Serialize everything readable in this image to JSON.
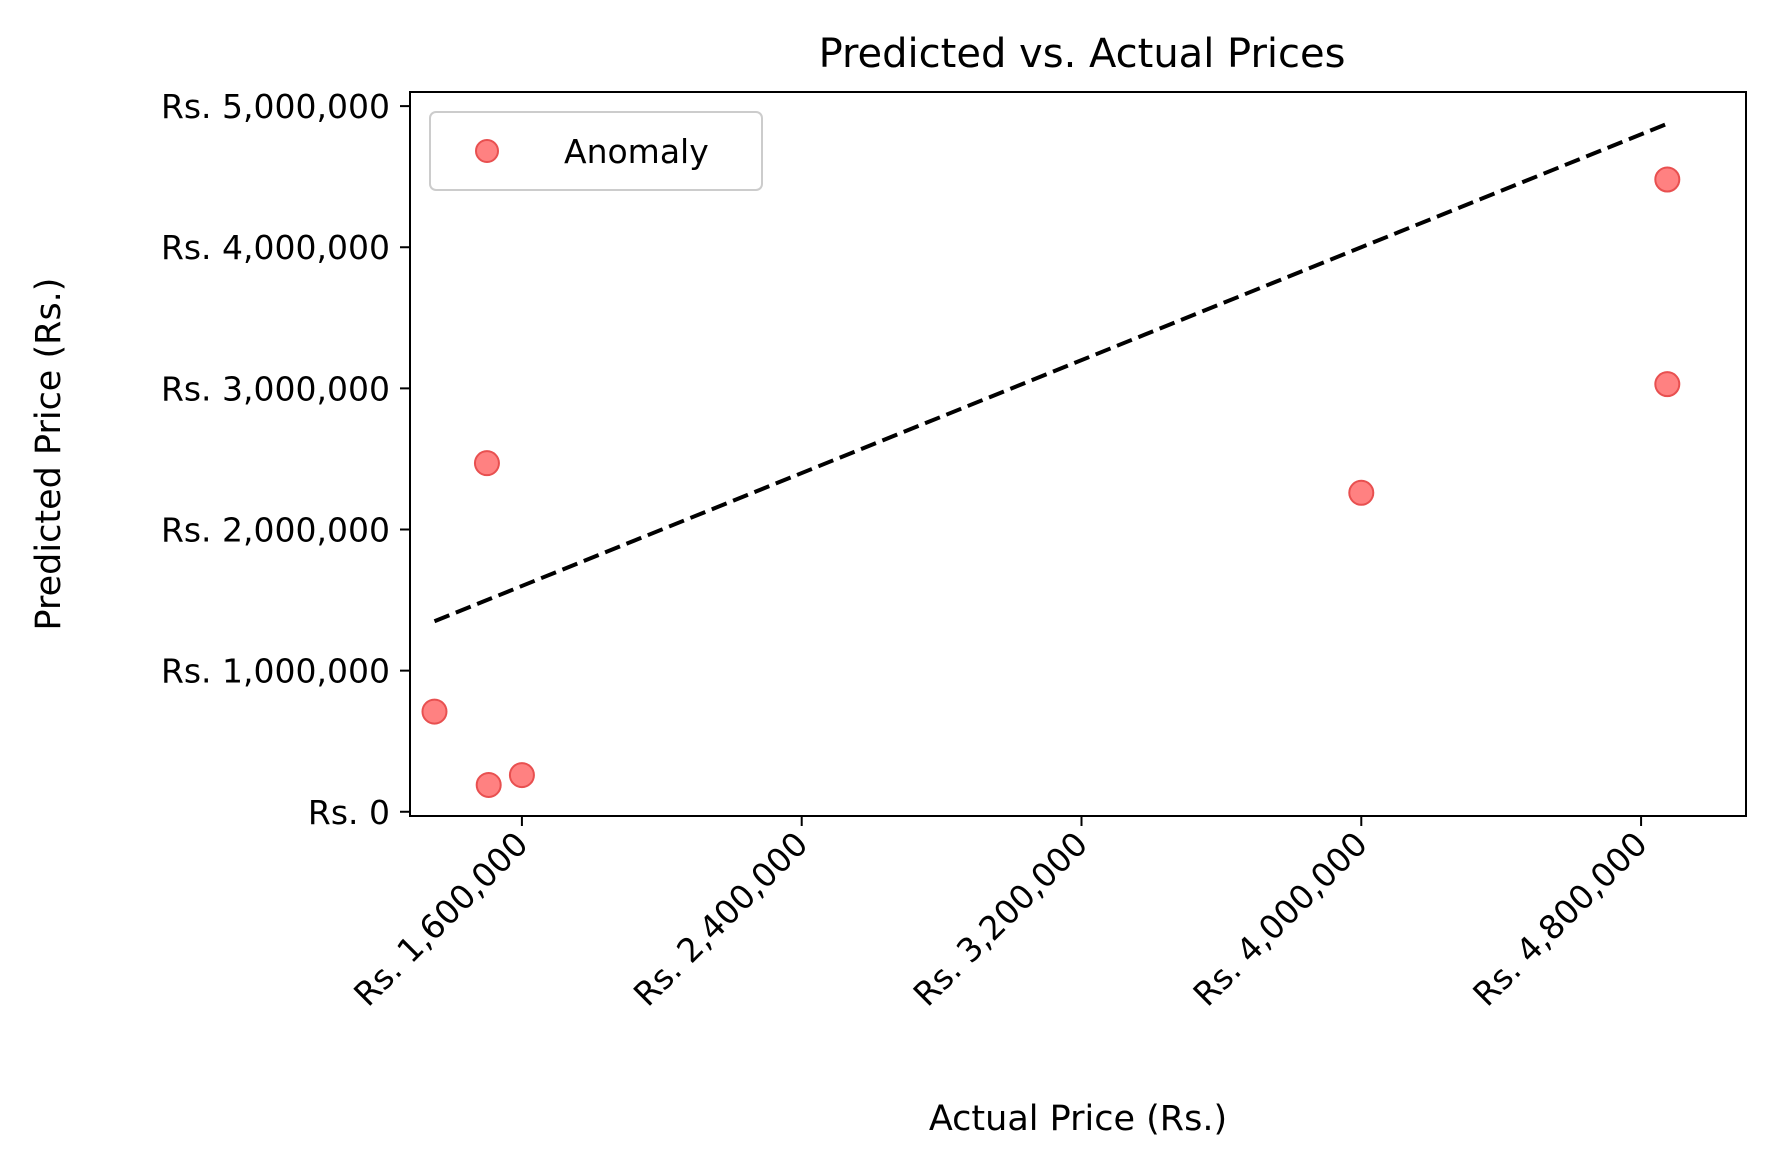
{
  "chart_data": {
    "type": "scatter",
    "title": "Predicted vs. Actual Prices",
    "xlabel": "Actual Price (Rs.)",
    "ylabel": "Predicted Price (Rs.)",
    "xlim": [
      1280000,
      5100000
    ],
    "ylim": [
      -30000,
      5100000
    ],
    "x_ticks": [
      {
        "value": 1600000,
        "label": "Rs. 1,600,000"
      },
      {
        "value": 2400000,
        "label": "Rs. 2,400,000"
      },
      {
        "value": 3200000,
        "label": "Rs. 3,200,000"
      },
      {
        "value": 4000000,
        "label": "Rs. 4,000,000"
      },
      {
        "value": 4800000,
        "label": "Rs. 4,800,000"
      }
    ],
    "y_ticks": [
      {
        "value": 0,
        "label": "Rs. 0"
      },
      {
        "value": 1000000,
        "label": "Rs. 1,000,000"
      },
      {
        "value": 2000000,
        "label": "Rs. 2,000,000"
      },
      {
        "value": 3000000,
        "label": "Rs. 3,000,000"
      },
      {
        "value": 4000000,
        "label": "Rs. 4,000,000"
      },
      {
        "value": 5000000,
        "label": "Rs. 5,000,000"
      }
    ],
    "series": [
      {
        "name": "Anomaly",
        "color": "#ff6b6b",
        "edge_color": "#e85050",
        "points": [
          {
            "x": 1350000,
            "y": 710000
          },
          {
            "x": 1500000,
            "y": 2470000
          },
          {
            "x": 1505000,
            "y": 190000
          },
          {
            "x": 1600000,
            "y": 260000
          },
          {
            "x": 4000000,
            "y": 2260000
          },
          {
            "x": 4875000,
            "y": 4480000
          },
          {
            "x": 4875000,
            "y": 3030000
          }
        ]
      }
    ],
    "reference_line": {
      "name": "perfect-prediction",
      "style": "dashed",
      "color": "#000000",
      "from": [
        1350000,
        1350000
      ],
      "to": [
        4875000,
        4875000
      ]
    },
    "legend": {
      "position": "top-left",
      "entries": [
        "Anomaly"
      ]
    },
    "grid": false
  }
}
